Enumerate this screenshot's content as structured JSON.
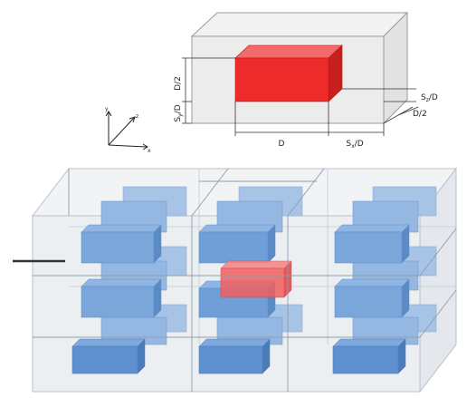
{
  "unit_cell": {
    "colors": {
      "block_front": "#ee2b2b",
      "block_side": "#c81f1f",
      "block_top": "#f36a6a",
      "cell": "#e6e6e6"
    },
    "dimensions": {
      "width": "D",
      "height": "D/2",
      "depth": "D/2",
      "gap_x": "S",
      "gap_x_sub": "x",
      "gap_x_tail": "/D",
      "gap_y": "S",
      "gap_y_sub": "y",
      "gap_y_tail": "/D",
      "gap_z": "S",
      "gap_z_sub": "z",
      "gap_z_tail": "/D"
    }
  },
  "axes": {
    "x": "x",
    "y": "y",
    "z": "z"
  },
  "array": {
    "colors": {
      "block": "#6f9fd6",
      "block_dark": "#5488c6",
      "highlight": "#f05050",
      "cell_edge": "#9aa9b8"
    },
    "rows": 3,
    "columns": 3,
    "layers": 2
  }
}
